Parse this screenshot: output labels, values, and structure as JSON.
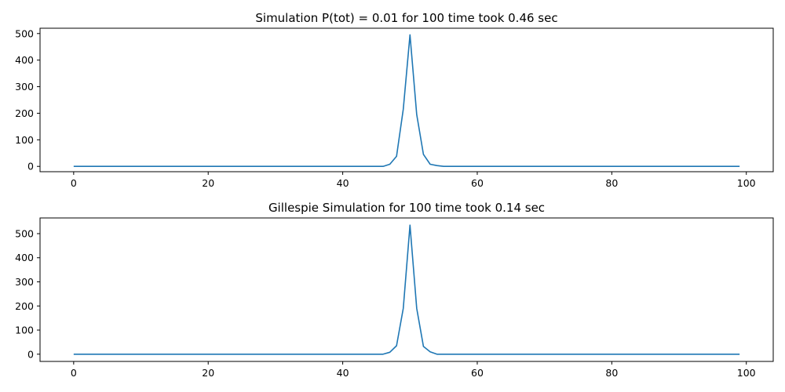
{
  "chart_data": [
    {
      "type": "line",
      "title": "Simulation P(tot) = 0.01 for 100 time took 0.46 sec",
      "xlabel": "",
      "ylabel": "",
      "xlim": [
        -5,
        104
      ],
      "ylim": [
        -20,
        520
      ],
      "xticks": [
        0,
        20,
        40,
        60,
        80,
        100
      ],
      "yticks": [
        0,
        100,
        200,
        300,
        400,
        500
      ],
      "grid": false,
      "color": "#1f77b4",
      "series": [
        {
          "x": [
            0,
            46,
            47,
            48,
            49,
            50,
            51,
            52,
            53,
            54,
            55,
            56,
            99
          ],
          "y": [
            0,
            0,
            8,
            38,
            215,
            495,
            195,
            45,
            8,
            3,
            0,
            0,
            0
          ]
        }
      ]
    },
    {
      "type": "line",
      "title": "Gillespie Simulation for 100 time took 0.14 sec",
      "xlabel": "",
      "ylabel": "",
      "xlim": [
        -5,
        104
      ],
      "ylim": [
        -30,
        565
      ],
      "xticks": [
        0,
        20,
        40,
        60,
        80,
        100
      ],
      "yticks": [
        0,
        100,
        200,
        300,
        400,
        500
      ],
      "grid": false,
      "color": "#1f77b4",
      "series": [
        {
          "x": [
            0,
            46,
            47,
            48,
            49,
            50,
            51,
            52,
            53,
            54,
            55,
            99
          ],
          "y": [
            0,
            0,
            8,
            35,
            190,
            535,
            190,
            32,
            10,
            0,
            0,
            0
          ]
        }
      ]
    }
  ]
}
